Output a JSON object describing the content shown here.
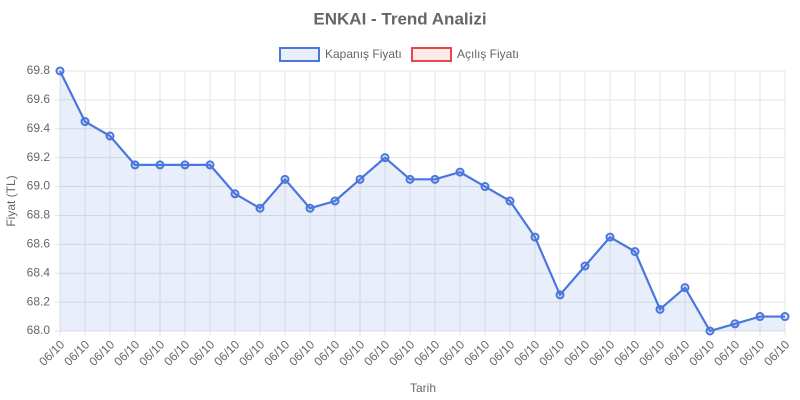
{
  "chart_data": {
    "type": "line",
    "title": "ENKAI - Trend Analizi",
    "x_label": "Tarih",
    "y_label": "Fiyat (TL)",
    "categories": [
      "06/10",
      "06/10",
      "06/10",
      "06/10",
      "06/10",
      "06/10",
      "06/10",
      "06/10",
      "06/10",
      "06/10",
      "06/10",
      "06/10",
      "06/10",
      "06/10",
      "06/10",
      "06/10",
      "06/10",
      "06/10",
      "06/10",
      "06/10",
      "06/10",
      "06/10",
      "06/10",
      "06/10",
      "06/10",
      "06/10",
      "06/10",
      "06/10",
      "06/10",
      "06/10"
    ],
    "series": [
      {
        "name": "Kapanış Fiyatı",
        "color": "#4a76de",
        "fill": "rgba(74,118,222,0.12)",
        "values": [
          69.8,
          69.45,
          69.35,
          69.15,
          69.15,
          69.15,
          69.15,
          68.95,
          68.85,
          69.05,
          68.85,
          68.9,
          69.05,
          69.2,
          69.05,
          69.05,
          69.1,
          69.0,
          68.9,
          68.65,
          68.25,
          68.45,
          68.65,
          68.55,
          68.15,
          68.3,
          68.0,
          68.05,
          68.1,
          68.1
        ]
      },
      {
        "name": "Açılış Fiyatı",
        "color": "#e8474a",
        "fill": "rgba(232,71,74,0.12)",
        "values": [
          null,
          null,
          null,
          null,
          null,
          null,
          null,
          null,
          null,
          null,
          null,
          null,
          null,
          null,
          null,
          null,
          null,
          null,
          null,
          null,
          null,
          null,
          null,
          null,
          null,
          null,
          null,
          null,
          null,
          null
        ]
      }
    ],
    "ylim": [
      68.0,
      69.8
    ],
    "yticks": [
      {
        "value": 68,
        "label": "68.0"
      },
      68.2,
      68.4,
      68.6,
      68.8,
      {
        "value": 69,
        "label": "69.0"
      },
      69.2,
      69.4,
      69.6,
      69.8
    ],
    "grid": true
  }
}
